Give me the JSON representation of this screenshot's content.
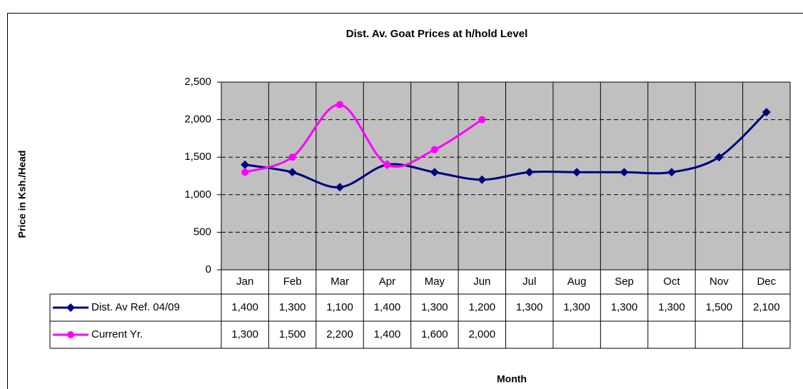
{
  "chart_data": {
    "type": "line",
    "title": "Dist. Av. Goat Prices at h/hold Level",
    "y_label": "Price in Ksh./Head",
    "x_label": "Month",
    "categories": [
      "Jan",
      "Feb",
      "Mar",
      "Apr",
      "May",
      "Jun",
      "Jul",
      "Aug",
      "Sep",
      "Oct",
      "Nov",
      "Dec"
    ],
    "series": [
      {
        "name": "Dist. Av Ref. 04/09",
        "color": "#000080",
        "marker": "diamond",
        "values": [
          1400,
          1300,
          1100,
          1400,
          1300,
          1200,
          1300,
          1300,
          1300,
          1300,
          1500,
          2100
        ],
        "value_labels": [
          "1,400",
          "1,300",
          "1,100",
          "1,400",
          "1,300",
          "1,200",
          "1,300",
          "1,300",
          "1,300",
          "1,300",
          "1,500",
          "2,100"
        ]
      },
      {
        "name": "Current Yr.",
        "color": "#ff00ff",
        "marker": "circle",
        "values": [
          1300,
          1500,
          2200,
          1400,
          1600,
          2000,
          null,
          null,
          null,
          null,
          null,
          null
        ],
        "value_labels": [
          "1,300",
          "1,500",
          "2,200",
          "1,400",
          "1,600",
          "2,000",
          null,
          null,
          null,
          null,
          null,
          null
        ]
      }
    ],
    "ylim": [
      0,
      2500
    ],
    "yticks": [
      0,
      500,
      {
        "value": 1000,
        "label": "1,000"
      },
      {
        "value": 1500,
        "label": "1,500"
      },
      {
        "value": 2000,
        "label": "2,000"
      },
      {
        "value": 2500,
        "label": "2,500"
      }
    ],
    "grid": true,
    "smooth": true,
    "data_table": true
  }
}
